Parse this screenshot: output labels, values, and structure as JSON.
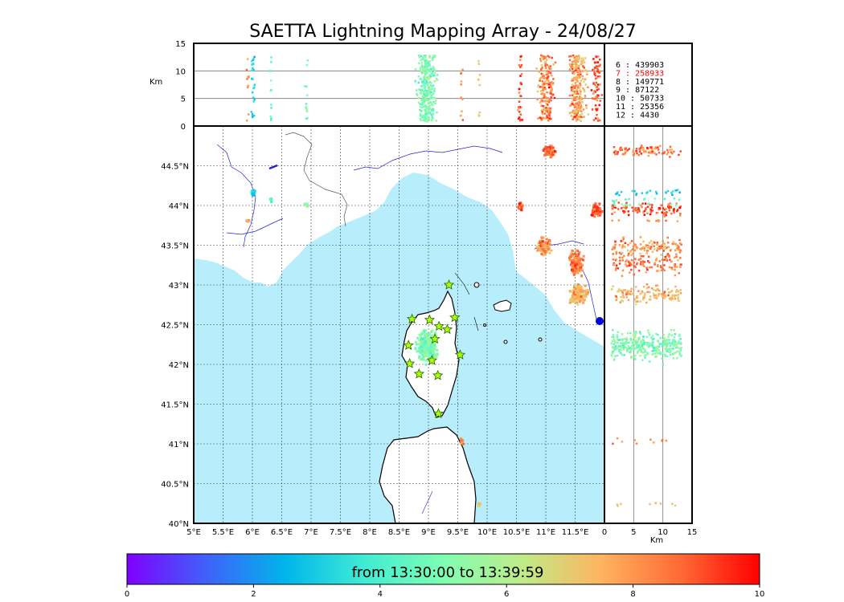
{
  "title": "SAETTA Lightning Mapping Array - 24/08/27",
  "altitude_panel": {
    "ylabel": "Km",
    "yticks": [
      "15",
      "10",
      "5",
      "0"
    ],
    "ymax": 15,
    "ref_lines_km": [
      5,
      10
    ]
  },
  "side_panel": {
    "xlabel": "Km",
    "xticks": [
      "0",
      "5",
      "10",
      "15"
    ],
    "xmax": 15,
    "ref_lines_km": [
      5,
      10
    ]
  },
  "map": {
    "lon_range": [
      5,
      12
    ],
    "lat_range": [
      40,
      45
    ],
    "lon_ticks": [
      "5°E",
      "5.5°E",
      "6°E",
      "6.5°E",
      "7°E",
      "7.5°E",
      "8°E",
      "8.5°E",
      "9°E",
      "9.5°E",
      "10°E",
      "10.5°E",
      "11°E",
      "11.5°E"
    ],
    "lat_ticks": [
      "44.5°N",
      "44°N",
      "43.5°N",
      "43°N",
      "42.5°N",
      "42°N",
      "41.5°N",
      "41°N",
      "40.5°N",
      "40°N"
    ],
    "sea_color": "#b8eefc",
    "grid": true
  },
  "station_counts": [
    {
      "label": "6  :   439903",
      "color": "#000000"
    },
    {
      "label": "7  :   258933",
      "color": "#ff0000"
    },
    {
      "label": "8  :   149771",
      "color": "#000000"
    },
    {
      "label": "9  :    87122",
      "color": "#000000"
    },
    {
      "label": "10 :    50733",
      "color": "#000000"
    },
    {
      "label": "11 :    25356",
      "color": "#000000"
    },
    {
      "label": "12 :     4430",
      "color": "#000000"
    }
  ],
  "colorbar": {
    "label": "from 13:30:00 to 13:39:59",
    "ticks": [
      "0",
      "2",
      "4",
      "6",
      "8",
      "10"
    ],
    "range": [
      0,
      10
    ],
    "colors": [
      "#7f00ff",
      "#3f61fa",
      "#00b5eb",
      "#40ecd4",
      "#7ffeb2",
      "#bfeb88",
      "#ffb360",
      "#ff6a36",
      "#ff0000"
    ]
  },
  "chart_data": {
    "type": "scatter",
    "title": "SAETTA Lightning Mapping Array - 24/08/27",
    "xlabel": "",
    "ylabel": "",
    "xlim": [
      5,
      12
    ],
    "ylim": [
      40,
      45
    ],
    "grid": true,
    "stations": [
      {
        "lon": 9.35,
        "lat": 43.0
      },
      {
        "lon": 8.72,
        "lat": 42.57
      },
      {
        "lon": 9.02,
        "lat": 42.56
      },
      {
        "lon": 9.45,
        "lat": 42.59
      },
      {
        "lon": 9.18,
        "lat": 42.48
      },
      {
        "lon": 9.32,
        "lat": 42.44
      },
      {
        "lon": 9.11,
        "lat": 42.32
      },
      {
        "lon": 8.66,
        "lat": 42.24
      },
      {
        "lon": 9.54,
        "lat": 42.12
      },
      {
        "lon": 9.06,
        "lat": 42.05
      },
      {
        "lon": 8.68,
        "lat": 42.01
      },
      {
        "lon": 9.16,
        "lat": 41.86
      },
      {
        "lon": 8.84,
        "lat": 41.88
      },
      {
        "lon": 9.17,
        "lat": 41.38
      }
    ],
    "storm_clusters": [
      {
        "lon": 8.95,
        "lat": 42.25,
        "spread_lon": 0.22,
        "spread_lat": 0.25,
        "time_min": 5,
        "n": 320
      },
      {
        "lon": 10.95,
        "lat": 43.5,
        "spread_lon": 0.15,
        "spread_lat": 0.15,
        "time_min": 8,
        "n": 110
      },
      {
        "lon": 11.5,
        "lat": 43.3,
        "spread_lon": 0.15,
        "spread_lat": 0.2,
        "time_min": 8.5,
        "n": 120
      },
      {
        "lon": 11.55,
        "lat": 42.9,
        "spread_lon": 0.2,
        "spread_lat": 0.15,
        "time_min": 7.5,
        "n": 120
      },
      {
        "lon": 11.05,
        "lat": 44.7,
        "spread_lon": 0.12,
        "spread_lat": 0.1,
        "time_min": 8.5,
        "n": 80
      },
      {
        "lon": 11.85,
        "lat": 43.95,
        "spread_lon": 0.12,
        "spread_lat": 0.1,
        "time_min": 9,
        "n": 70
      },
      {
        "lon": 10.55,
        "lat": 44.0,
        "spread_lon": 0.05,
        "spread_lat": 0.08,
        "time_min": 9,
        "n": 30
      },
      {
        "lon": 6.0,
        "lat": 44.18,
        "spread_lon": 0.05,
        "spread_lat": 0.05,
        "time_min": 3,
        "n": 25
      },
      {
        "lon": 6.3,
        "lat": 44.08,
        "spread_lon": 0.02,
        "spread_lat": 0.05,
        "time_min": 4.5,
        "n": 12
      },
      {
        "lon": 5.9,
        "lat": 43.82,
        "spread_lon": 0.04,
        "spread_lat": 0.02,
        "time_min": 8,
        "n": 10
      },
      {
        "lon": 6.9,
        "lat": 44.02,
        "spread_lon": 0.04,
        "spread_lat": 0.03,
        "time_min": 5,
        "n": 12
      },
      {
        "lon": 9.55,
        "lat": 41.05,
        "spread_lon": 0.03,
        "spread_lat": 0.05,
        "time_min": 8.5,
        "n": 10
      },
      {
        "lon": 9.85,
        "lat": 40.25,
        "spread_lon": 0.03,
        "spread_lat": 0.03,
        "time_min": 7,
        "n": 8
      }
    ]
  }
}
